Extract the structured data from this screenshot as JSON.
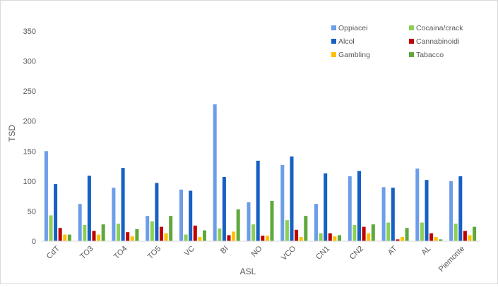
{
  "chart_data": {
    "type": "bar",
    "title": "",
    "xlabel": "ASL",
    "ylabel": "TSD",
    "ylim": [
      0,
      350
    ],
    "yticks": [
      0,
      50,
      100,
      150,
      200,
      250,
      300,
      350
    ],
    "grid": false,
    "legend_position": "top-right",
    "categories": [
      "CdT",
      "TO3",
      "TO4",
      "TO5",
      "VC",
      "BI",
      "NO",
      "VCO",
      "CN1",
      "CN2",
      "AT",
      "AL",
      "Piemonte"
    ],
    "series": [
      {
        "name": "Oppiacei",
        "color": "#6c9de8",
        "values": [
          150,
          62,
          89,
          42,
          86,
          228,
          65,
          127,
          62,
          108,
          90,
          121,
          100
        ]
      },
      {
        "name": "Cocaina/crack",
        "color": "#8ccf57",
        "values": [
          43,
          27,
          29,
          33,
          11,
          21,
          28,
          35,
          13,
          27,
          31,
          31,
          29
        ]
      },
      {
        "name": "Alcol",
        "color": "#1660c4",
        "values": [
          95,
          109,
          122,
          97,
          84,
          107,
          134,
          141,
          113,
          117,
          89,
          102,
          108
        ]
      },
      {
        "name": "Cannabinoidi",
        "color": "#c00000",
        "values": [
          22,
          17,
          15,
          24,
          26,
          10,
          9,
          19,
          13,
          24,
          3,
          13,
          17
        ]
      },
      {
        "name": "Gambling",
        "color": "#ffc000",
        "values": [
          11,
          11,
          8,
          13,
          7,
          16,
          9,
          7,
          8,
          13,
          7,
          7,
          10
        ]
      },
      {
        "name": "Tabacco",
        "color": "#5fa83b",
        "values": [
          11,
          28,
          20,
          42,
          18,
          53,
          67,
          42,
          10,
          28,
          22,
          3,
          24
        ]
      }
    ]
  }
}
